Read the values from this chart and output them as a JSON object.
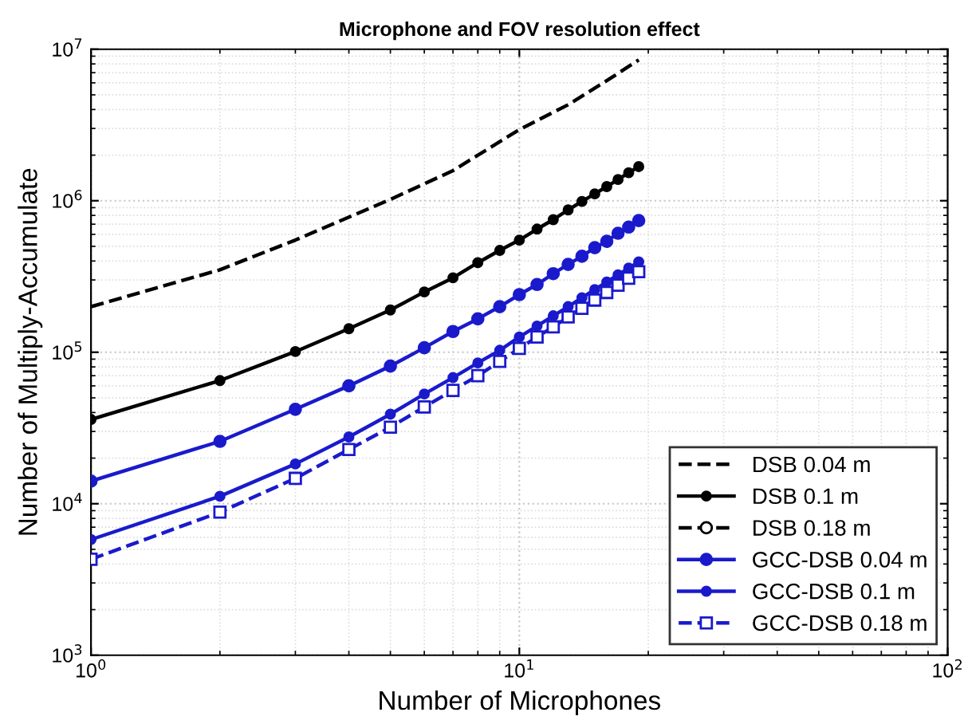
{
  "chart_data": {
    "type": "line",
    "title": "Microphone and FOV resolution effect",
    "xlabel": "Number of Microphones",
    "ylabel": "Number of Multiply-Accumulate",
    "log": "xy",
    "grid": true,
    "legend": "bottom right",
    "xlim": [
      1,
      100
    ],
    "xticks": [
      {
        "value": 1,
        "label": "10$^{0}$"
      },
      {
        "value": 10,
        "label": "10$^{1}$"
      },
      {
        "value": 100,
        "label": "10$^{2}$"
      }
    ],
    "ylim": [
      1000,
      10000000
    ],
    "yticks": [
      {
        "value": 1000,
        "label": "10$^{3}$"
      },
      {
        "value": 10000,
        "label": "10$^{4}$"
      },
      {
        "value": 100000,
        "label": "10$^{5}$"
      },
      {
        "value": 1000000,
        "label": "10$^{6}$"
      },
      {
        "value": 10000000,
        "label": "10$^{7}$"
      }
    ],
    "series": [
      {
        "name": "DSB 0.04 m",
        "color": "#000000",
        "line_style": "dashed",
        "marker": "none",
        "x": [
          1,
          2,
          3,
          5,
          7,
          10,
          13,
          16,
          19
        ],
        "values": [
          200000,
          350000,
          550000,
          1020000,
          1580000,
          2950000,
          4300000,
          6200000,
          8500000
        ]
      },
      {
        "name": "DSB 0.1 m",
        "color": "#000000",
        "line_style": "solid",
        "marker": "circle",
        "x": [
          1,
          2,
          3,
          4,
          5,
          6,
          7,
          8,
          9,
          10,
          11,
          12,
          13,
          14,
          15,
          16,
          17,
          18,
          19
        ],
        "values": [
          36000,
          65000,
          101000,
          143000,
          190000,
          250000,
          310000,
          390000,
          470000,
          550000,
          650000,
          750000,
          870000,
          990000,
          1110000,
          1240000,
          1380000,
          1530000,
          1680000
        ]
      },
      {
        "name": "DSB 0.18 m",
        "color": "#000000",
        "line_style": "dashed",
        "marker": "circle"
      },
      {
        "name": "GCC-DSB 0.04 m",
        "color": "#1a1acc",
        "line_style": "solid",
        "marker": "circle",
        "x": [
          1,
          2,
          3,
          4,
          5,
          6,
          7,
          8,
          9,
          10,
          11,
          12,
          13,
          14,
          15,
          16,
          17,
          18,
          19
        ],
        "values": [
          14100,
          25800,
          42000,
          60000,
          81000,
          107000,
          137000,
          166000,
          200000,
          240000,
          280000,
          330000,
          380000,
          430000,
          490000,
          540000,
          610000,
          670000,
          740000
        ]
      },
      {
        "name": "GCC-DSB 0.1 m",
        "color": "#1a1acc",
        "line_style": "solid",
        "marker": "circle",
        "x": [
          1,
          2,
          3,
          4,
          5,
          6,
          7,
          8,
          9,
          10,
          11,
          12,
          13,
          14,
          15,
          16,
          17,
          18,
          19
        ],
        "values": [
          5800,
          11200,
          18300,
          27600,
          39000,
          53000,
          68000,
          85000,
          103000,
          126000,
          149000,
          174000,
          200000,
          229000,
          259000,
          291000,
          324000,
          359000,
          395000
        ]
      },
      {
        "name": "GCC-DSB 0.18 m",
        "color": "#1a1acc",
        "line_style": "dashed",
        "marker": "square",
        "x": [
          1,
          2,
          3,
          4,
          5,
          6,
          7,
          8,
          9,
          10,
          11,
          12,
          13,
          14,
          15,
          16,
          17,
          18,
          19
        ],
        "values": [
          4300,
          8800,
          14700,
          22800,
          32000,
          43500,
          56000,
          70000,
          87000,
          106000,
          126000,
          147000,
          171000,
          195000,
          221000,
          248000,
          277000,
          308000,
          340000
        ]
      }
    ]
  }
}
